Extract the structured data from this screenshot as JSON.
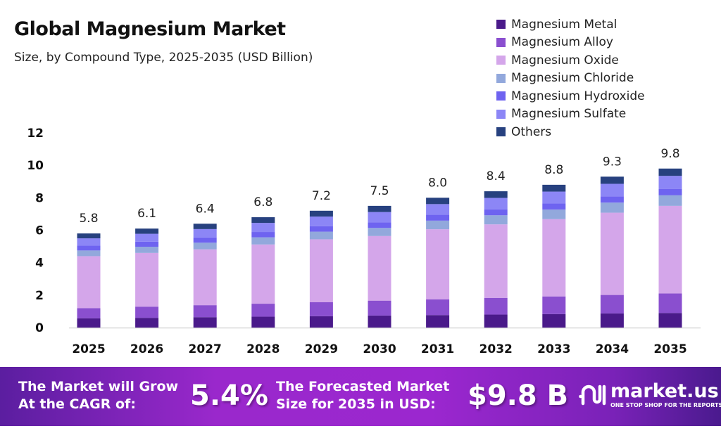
{
  "chart_data": {
    "type": "bar",
    "stacked": true,
    "title": "Global Magnesium Market",
    "subtitle": "Size, by Compound Type, 2025-2035 (USD Billion)",
    "xlabel": "",
    "ylabel": "",
    "ylim": [
      0,
      12
    ],
    "yticks": [
      0,
      2,
      4,
      6,
      8,
      10,
      12
    ],
    "grid": false,
    "legend_position": "top-right",
    "categories": [
      "2025",
      "2026",
      "2027",
      "2028",
      "2029",
      "2030",
      "2031",
      "2032",
      "2033",
      "2034",
      "2035"
    ],
    "totals": [
      5.8,
      6.1,
      6.4,
      6.8,
      7.2,
      7.5,
      8.0,
      8.4,
      8.8,
      9.3,
      9.8
    ],
    "series": [
      {
        "name": "Magnesium Metal",
        "color": "#4a1a8a",
        "values": [
          0.57,
          0.6,
          0.64,
          0.67,
          0.7,
          0.74,
          0.77,
          0.8,
          0.83,
          0.87,
          0.9
        ]
      },
      {
        "name": "Magnesium Alloy",
        "color": "#8a4fcf",
        "values": [
          0.63,
          0.69,
          0.74,
          0.8,
          0.86,
          0.92,
          0.97,
          1.03,
          1.09,
          1.14,
          1.2
        ]
      },
      {
        "name": "Magnesium Oxide",
        "color": "#d4a6ea",
        "values": [
          3.2,
          3.31,
          3.44,
          3.65,
          3.88,
          3.98,
          4.32,
          4.53,
          4.76,
          5.07,
          5.4
        ]
      },
      {
        "name": "Magnesium Chloride",
        "color": "#92a8dc",
        "values": [
          0.35,
          0.38,
          0.41,
          0.44,
          0.47,
          0.5,
          0.53,
          0.56,
          0.59,
          0.62,
          0.65
        ]
      },
      {
        "name": "Magnesium Hydroxide",
        "color": "#6e63f0",
        "values": [
          0.3,
          0.31,
          0.32,
          0.33,
          0.34,
          0.35,
          0.36,
          0.37,
          0.38,
          0.39,
          0.4
        ]
      },
      {
        "name": "Magnesium Sulfate",
        "color": "#8c86f6",
        "values": [
          0.45,
          0.49,
          0.52,
          0.56,
          0.59,
          0.63,
          0.66,
          0.7,
          0.73,
          0.77,
          0.8
        ]
      },
      {
        "name": "Others",
        "color": "#27417f",
        "values": [
          0.3,
          0.32,
          0.33,
          0.35,
          0.36,
          0.38,
          0.39,
          0.41,
          0.42,
          0.44,
          0.45
        ]
      }
    ]
  },
  "banner": {
    "cagr_label_1": "The Market will Grow",
    "cagr_label_2": "At the CAGR of:",
    "cagr_value": "5.4%",
    "forecast_label_1": "The Forecasted Market",
    "forecast_label_2": "Size for 2035 in USD:",
    "forecast_value": "$9.8 B",
    "logo_name": "market.us",
    "logo_tagline": "ONE STOP SHOP FOR THE REPORTS"
  }
}
